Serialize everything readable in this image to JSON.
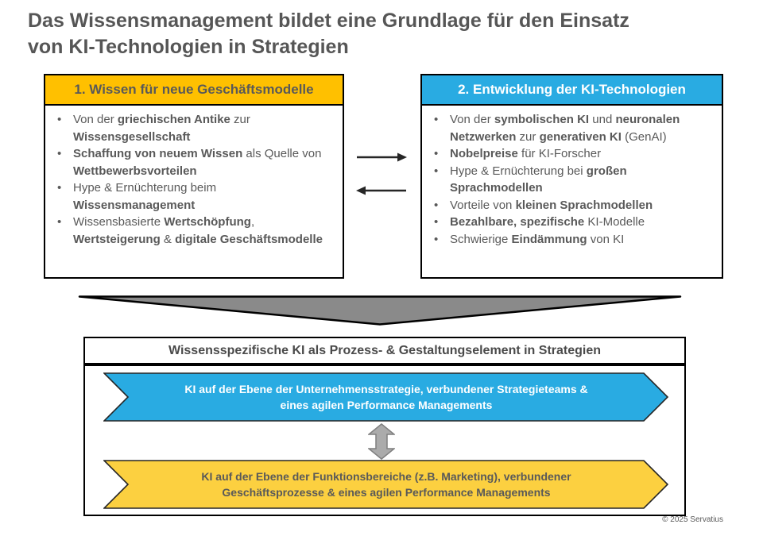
{
  "page": {
    "title": "Das Wissensmanagement bildet eine Grundlage für den Einsatz\nvon KI-Technologien in Strategien",
    "copyright": "© 2025 Servatius"
  },
  "bullet_char": "•",
  "colors": {
    "accent_yellow": "#FFC000",
    "accent_yellow_light": "#FCD040",
    "accent_blue": "#29ABE2",
    "text_dark": "#595959",
    "funnel_gray": "#8A8A8A",
    "connector_gray": "#ABABAB",
    "connector_gray_border": "#7F7F7F",
    "line_black": "#000000",
    "arrow_dark": "#262626"
  },
  "icons": {
    "exchange_right": "right-arrow",
    "exchange_left": "left-arrow",
    "funnel": "down-triangle",
    "vertical_link": "up-down-double-arrow"
  },
  "left_box": {
    "header": "1. Wissen für neue Geschäftsmodelle",
    "bullets": [
      {
        "segments": [
          {
            "text": "Von der ",
            "bold": false
          },
          {
            "text": "griechischen Antike",
            "bold": true
          },
          {
            "text": " zur ",
            "bold": false
          },
          {
            "text": "Wissensgesellschaft",
            "bold": true
          }
        ]
      },
      {
        "segments": [
          {
            "text": "Schaffung von neuem Wissen",
            "bold": true
          },
          {
            "text": " als Quelle von ",
            "bold": false
          },
          {
            "text": "Wettbewerbsvorteilen",
            "bold": true
          }
        ]
      },
      {
        "segments": [
          {
            "text": "Hype & Ernüchterung beim ",
            "bold": false
          },
          {
            "text": "Wissensmanagement",
            "bold": true
          }
        ]
      },
      {
        "segments": [
          {
            "text": "Wissensbasierte ",
            "bold": false
          },
          {
            "text": "Wertschöpfung",
            "bold": true
          },
          {
            "text": ", ",
            "bold": false
          },
          {
            "text": "Wertsteigerung",
            "bold": true
          },
          {
            "text": " & ",
            "bold": false
          },
          {
            "text": "digitale Geschäftsmodelle",
            "bold": true
          }
        ]
      }
    ]
  },
  "right_box": {
    "header": "2. Entwicklung der KI-Technologien",
    "bullets": [
      {
        "segments": [
          {
            "text": "Von der ",
            "bold": false
          },
          {
            "text": "symbolischen KI",
            "bold": true
          },
          {
            "text": " und ",
            "bold": false
          },
          {
            "text": "neuronalen Netzwerken",
            "bold": true
          },
          {
            "text": " zur ",
            "bold": false
          },
          {
            "text": "generativen KI",
            "bold": true
          },
          {
            "text": " (GenAI)",
            "bold": false
          }
        ]
      },
      {
        "segments": [
          {
            "text": "Nobelpreise",
            "bold": true
          },
          {
            "text": " für KI-Forscher",
            "bold": false
          }
        ]
      },
      {
        "segments": [
          {
            "text": "Hype & Ernüchterung bei ",
            "bold": false
          },
          {
            "text": "großen Sprachmodellen",
            "bold": true
          }
        ]
      },
      {
        "segments": [
          {
            "text": "Vorteile von ",
            "bold": false
          },
          {
            "text": "kleinen Sprachmodellen",
            "bold": true
          }
        ]
      },
      {
        "segments": [
          {
            "text": "Bezahlbare, spezifische",
            "bold": true
          },
          {
            "text": " KI-Modelle",
            "bold": false
          }
        ]
      },
      {
        "segments": [
          {
            "text": "Schwierige ",
            "bold": false
          },
          {
            "text": "Eindämmung",
            "bold": true
          },
          {
            "text": " von KI",
            "bold": false
          }
        ]
      }
    ]
  },
  "bottom": {
    "header": "Wissensspezifische KI als Prozess- & Gestaltungselement in Strategien",
    "blue_banner": "KI auf der Ebene der Unternehmensstrategie, verbundener Strategieteams &\neines agilen Performance Managements",
    "yellow_banner": "KI auf der Ebene der Funktionsbereiche (z.B. Marketing), verbundener\nGeschäftsprozesse & eines agilen Performance Managements"
  }
}
